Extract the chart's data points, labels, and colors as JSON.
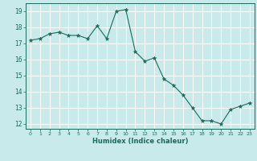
{
  "title": "",
  "xlabel": "Humidex (Indice chaleur)",
  "ylabel": "",
  "background_color": "#c8eaea",
  "grid_color": "#ffffff",
  "line_color": "#1a6b5a",
  "marker_color": "#1a6b5a",
  "xlim": [
    -0.5,
    23.5
  ],
  "ylim": [
    11.7,
    19.5
  ],
  "xticks": [
    0,
    1,
    2,
    3,
    4,
    5,
    6,
    7,
    8,
    9,
    10,
    11,
    12,
    13,
    14,
    15,
    16,
    17,
    18,
    19,
    20,
    21,
    22,
    23
  ],
  "yticks": [
    12,
    13,
    14,
    15,
    16,
    17,
    18,
    19
  ],
  "x": [
    0,
    1,
    2,
    3,
    4,
    5,
    6,
    7,
    8,
    9,
    10,
    11,
    12,
    13,
    14,
    15,
    16,
    17,
    18,
    19,
    20,
    21,
    22,
    23
  ],
  "y": [
    17.2,
    17.3,
    17.6,
    17.7,
    17.5,
    17.5,
    17.3,
    18.1,
    17.3,
    19.0,
    19.1,
    16.5,
    15.9,
    16.1,
    14.8,
    14.4,
    13.8,
    13.0,
    12.2,
    12.2,
    12.0,
    12.9,
    13.1,
    13.3
  ]
}
